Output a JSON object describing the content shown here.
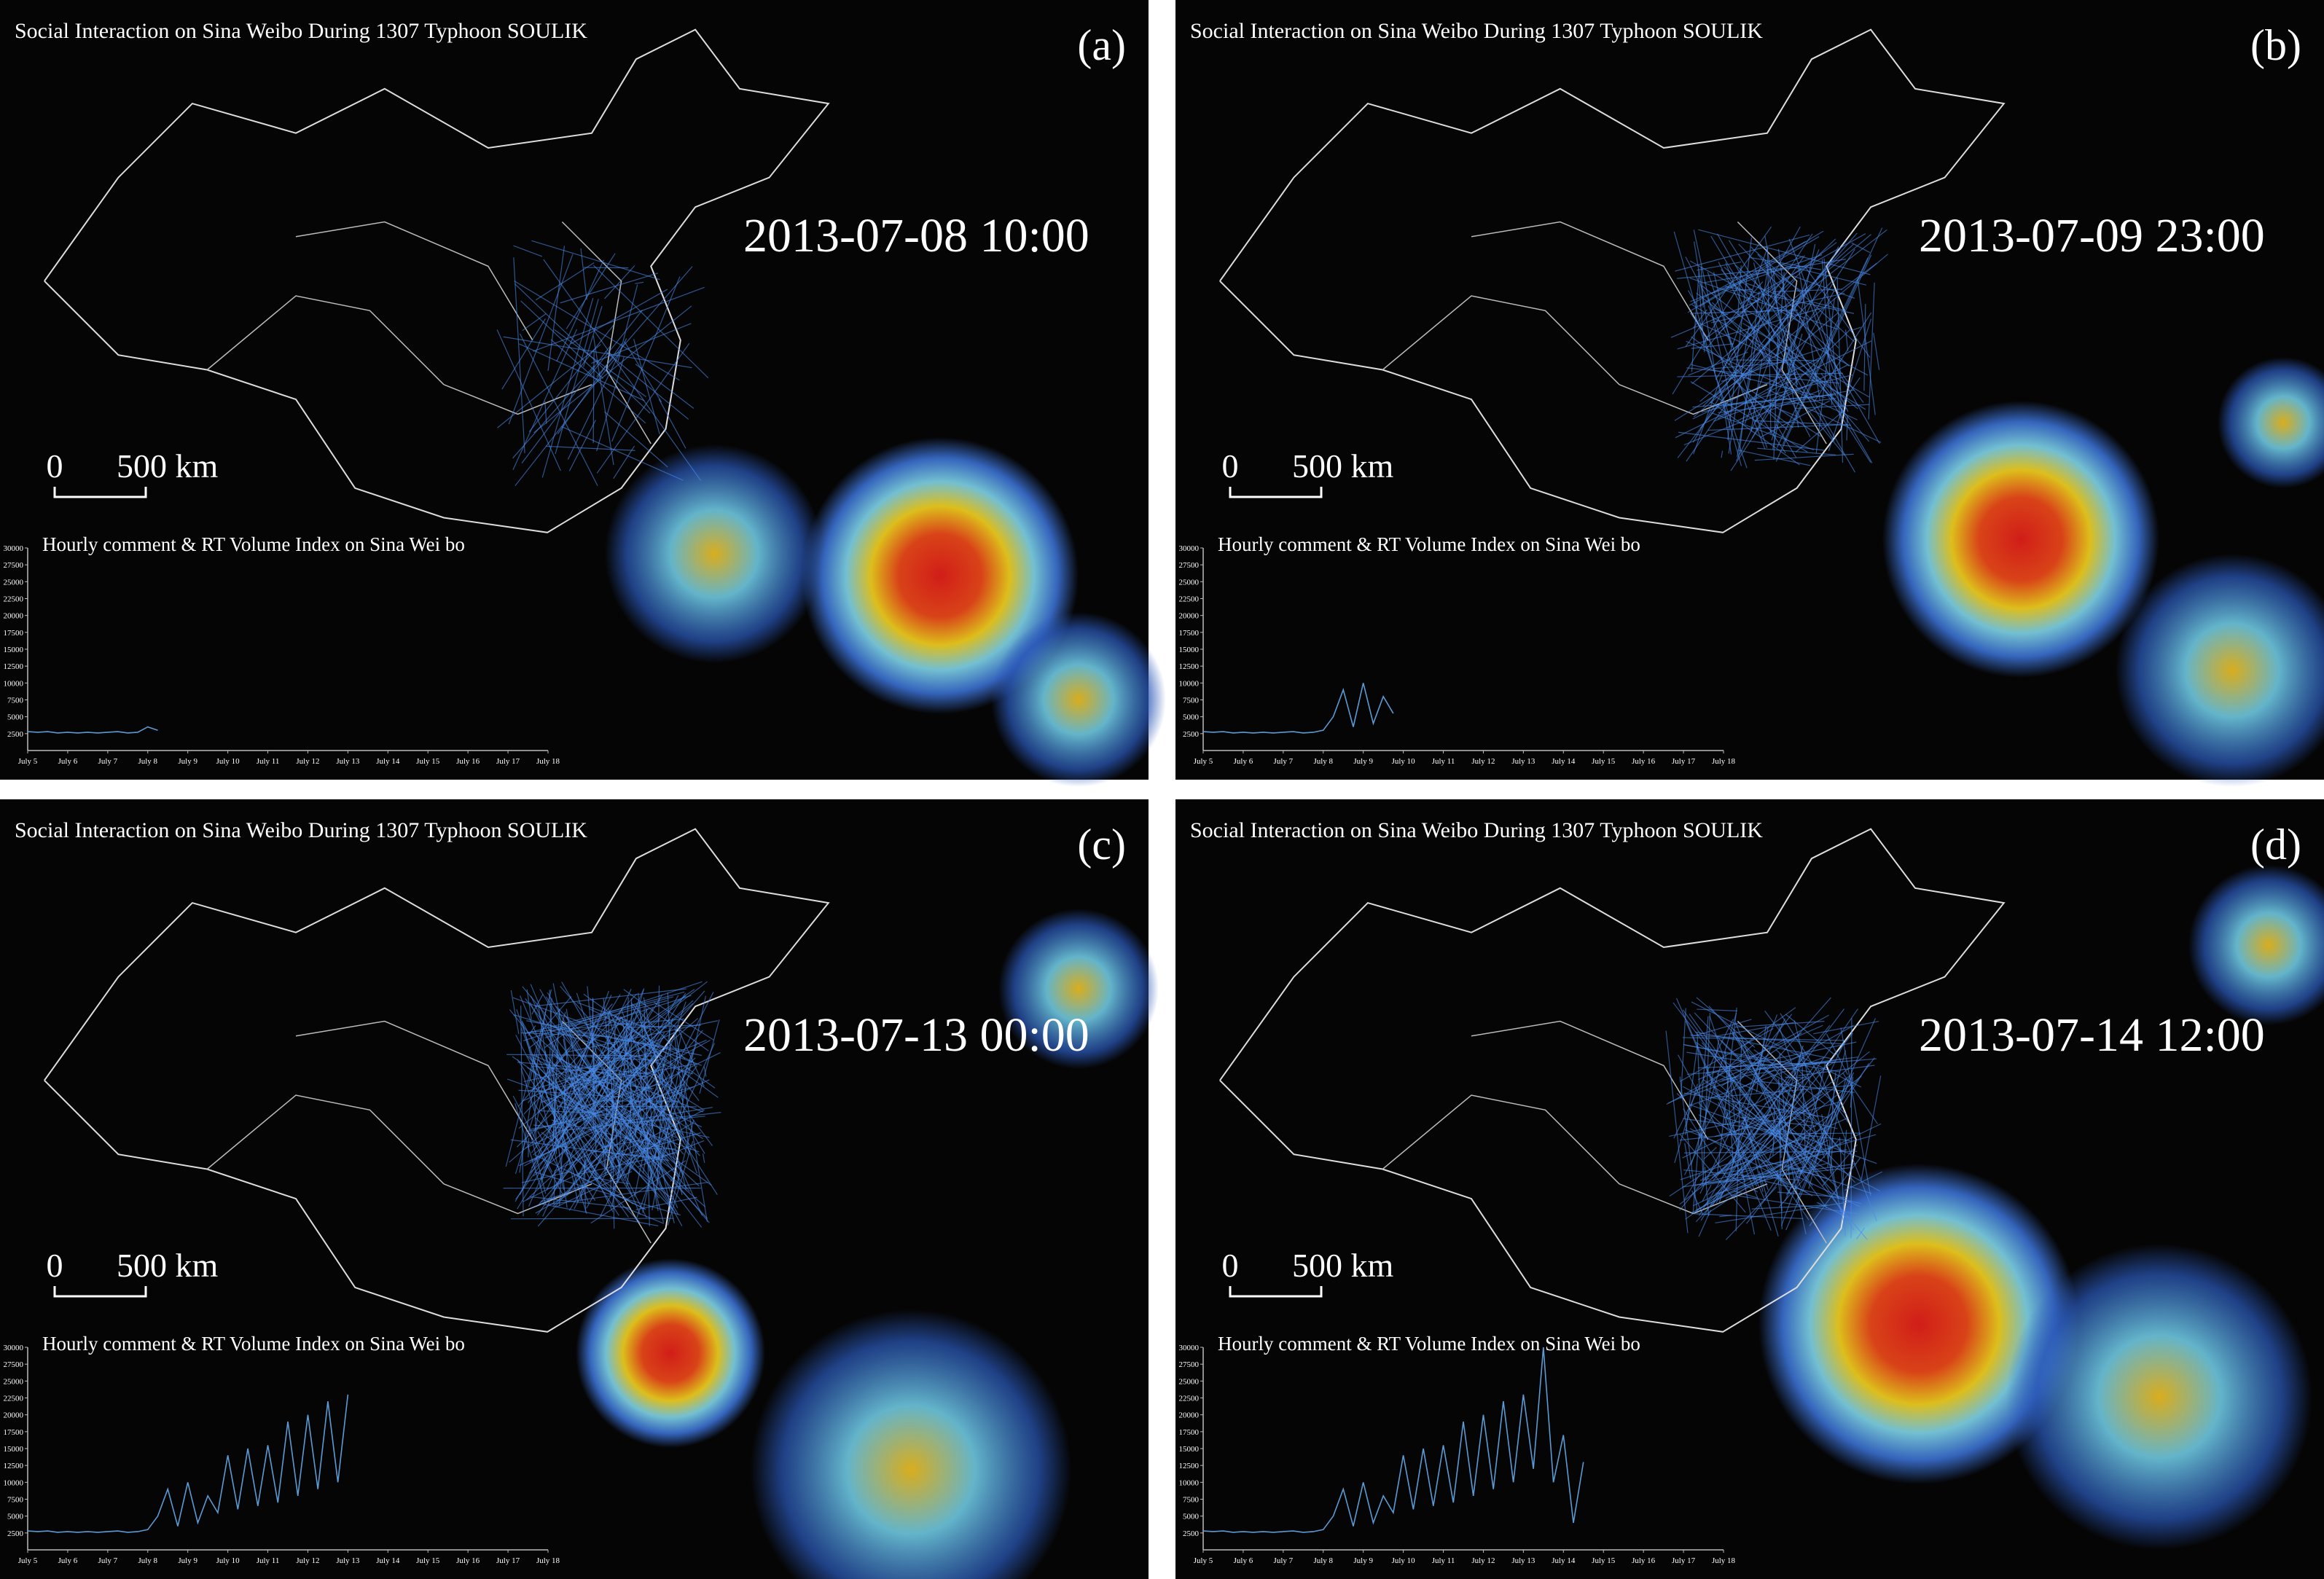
{
  "panels": [
    {
      "label": "(a)",
      "title": "Social Interaction on Sina Weibo During 1307 Typhoon SOULIK",
      "timestamp": "2013-07-08  10:00",
      "scale_start": "0",
      "scale_end": "500 km"
    },
    {
      "label": "(b)",
      "title": "Social Interaction on Sina Weibo During 1307 Typhoon SOULIK",
      "timestamp": "2013-07-09  23:00",
      "scale_start": "0",
      "scale_end": "500 km"
    },
    {
      "label": "(c)",
      "title": "Social Interaction on Sina Weibo During 1307 Typhoon SOULIK",
      "timestamp": "2013-07-13  00:00",
      "scale_start": "0",
      "scale_end": "500 km"
    },
    {
      "label": "(d)",
      "title": "Social Interaction on Sina Weibo During 1307 Typhoon SOULIK",
      "timestamp": "2013-07-14  12:00",
      "scale_start": "0",
      "scale_end": "500 km"
    }
  ],
  "chart_data": [
    {
      "type": "line",
      "title": "Hourly comment & RT Volume Index on Sina Wei bo",
      "x": [
        5,
        5.25,
        5.5,
        5.75,
        6,
        6.25,
        6.5,
        6.75,
        7,
        7.25,
        7.5,
        7.75,
        8,
        8.25
      ],
      "series": [
        {
          "color": "#5b9bd5",
          "values": [
            2800,
            2700,
            2800,
            2600,
            2700,
            2600,
            2700,
            2600,
            2700,
            2800,
            2600,
            2700,
            3500,
            3000
          ]
        }
      ],
      "xlim": [
        5,
        18
      ],
      "ylim": [
        0,
        30000
      ],
      "xticks": [
        {
          "value": 5,
          "label": "July 5"
        },
        {
          "value": 6,
          "label": "July 6"
        },
        {
          "value": 7,
          "label": "July 7"
        },
        {
          "value": 8,
          "label": "July 8"
        },
        {
          "value": 9,
          "label": "July 9"
        },
        {
          "value": 10,
          "label": "July 10"
        },
        {
          "value": 11,
          "label": "July 11"
        },
        {
          "value": 12,
          "label": "July 12"
        },
        {
          "value": 13,
          "label": "July 13"
        },
        {
          "value": 14,
          "label": "July 14"
        },
        {
          "value": 15,
          "label": "July 15"
        },
        {
          "value": 16,
          "label": "July 16"
        },
        {
          "value": 17,
          "label": "July 17"
        },
        {
          "value": 18,
          "label": "July 18"
        }
      ],
      "yticks": [
        2500,
        5000,
        7500,
        10000,
        12500,
        15000,
        17500,
        20000,
        22500,
        25000,
        27500,
        30000
      ]
    },
    {
      "type": "line",
      "title": "Hourly comment & RT Volume Index on Sina Wei bo",
      "x": [
        5,
        5.25,
        5.5,
        5.75,
        6,
        6.25,
        6.5,
        6.75,
        7,
        7.25,
        7.5,
        7.75,
        8,
        8.25,
        8.5,
        8.75,
        9,
        9.25,
        9.5,
        9.75
      ],
      "series": [
        {
          "color": "#5b9bd5",
          "values": [
            2800,
            2700,
            2800,
            2600,
            2700,
            2600,
            2700,
            2600,
            2700,
            2800,
            2600,
            2700,
            3000,
            5000,
            9000,
            3500,
            10000,
            4000,
            8000,
            5500
          ]
        }
      ],
      "xlim": [
        5,
        18
      ],
      "ylim": [
        0,
        30000
      ],
      "xticks": [
        {
          "value": 5,
          "label": "July 5"
        },
        {
          "value": 6,
          "label": "July 6"
        },
        {
          "value": 7,
          "label": "July 7"
        },
        {
          "value": 8,
          "label": "July 8"
        },
        {
          "value": 9,
          "label": "July 9"
        },
        {
          "value": 10,
          "label": "July 10"
        },
        {
          "value": 11,
          "label": "July 11"
        },
        {
          "value": 12,
          "label": "July 12"
        },
        {
          "value": 13,
          "label": "July 13"
        },
        {
          "value": 14,
          "label": "July 14"
        },
        {
          "value": 15,
          "label": "July 15"
        },
        {
          "value": 16,
          "label": "July 16"
        },
        {
          "value": 17,
          "label": "July 17"
        },
        {
          "value": 18,
          "label": "July 18"
        }
      ],
      "yticks": [
        2500,
        5000,
        7500,
        10000,
        12500,
        15000,
        17500,
        20000,
        22500,
        25000,
        27500,
        30000
      ]
    },
    {
      "type": "line",
      "title": "Hourly comment & RT Volume Index on Sina Wei bo",
      "x": [
        5,
        5.25,
        5.5,
        5.75,
        6,
        6.25,
        6.5,
        6.75,
        7,
        7.25,
        7.5,
        7.75,
        8,
        8.25,
        8.5,
        8.75,
        9,
        9.25,
        9.5,
        9.75,
        10,
        10.25,
        10.5,
        10.75,
        11,
        11.25,
        11.5,
        11.75,
        12,
        12.25,
        12.5,
        12.75,
        13
      ],
      "series": [
        {
          "color": "#5b9bd5",
          "values": [
            2800,
            2700,
            2800,
            2600,
            2700,
            2600,
            2700,
            2600,
            2700,
            2800,
            2600,
            2700,
            3000,
            5000,
            9000,
            3500,
            10000,
            4000,
            8000,
            5500,
            14000,
            6000,
            15000,
            6500,
            15500,
            7000,
            19000,
            8000,
            20000,
            9000,
            22000,
            10000,
            23000
          ]
        }
      ],
      "xlim": [
        5,
        18
      ],
      "ylim": [
        0,
        30000
      ],
      "xticks": [
        {
          "value": 5,
          "label": "July 5"
        },
        {
          "value": 6,
          "label": "July 6"
        },
        {
          "value": 7,
          "label": "July 7"
        },
        {
          "value": 8,
          "label": "July 8"
        },
        {
          "value": 9,
          "label": "July 9"
        },
        {
          "value": 10,
          "label": "July 10"
        },
        {
          "value": 11,
          "label": "July 11"
        },
        {
          "value": 12,
          "label": "July 12"
        },
        {
          "value": 13,
          "label": "July 13"
        },
        {
          "value": 14,
          "label": "July 14"
        },
        {
          "value": 15,
          "label": "July 15"
        },
        {
          "value": 16,
          "label": "July 16"
        },
        {
          "value": 17,
          "label": "July 17"
        },
        {
          "value": 18,
          "label": "July 18"
        }
      ],
      "yticks": [
        2500,
        5000,
        7500,
        10000,
        12500,
        15000,
        17500,
        20000,
        22500,
        25000,
        27500,
        30000
      ]
    },
    {
      "type": "line",
      "title": "Hourly comment & RT Volume Index on Sina Wei bo",
      "x": [
        5,
        5.25,
        5.5,
        5.75,
        6,
        6.25,
        6.5,
        6.75,
        7,
        7.25,
        7.5,
        7.75,
        8,
        8.25,
        8.5,
        8.75,
        9,
        9.25,
        9.5,
        9.75,
        10,
        10.25,
        10.5,
        10.75,
        11,
        11.25,
        11.5,
        11.75,
        12,
        12.25,
        12.5,
        12.75,
        13,
        13.25,
        13.5,
        13.75,
        14,
        14.25,
        14.5
      ],
      "series": [
        {
          "color": "#5b9bd5",
          "values": [
            2800,
            2700,
            2800,
            2600,
            2700,
            2600,
            2700,
            2600,
            2700,
            2800,
            2600,
            2700,
            3000,
            5000,
            9000,
            3500,
            10000,
            4000,
            8000,
            5500,
            14000,
            6000,
            15000,
            6500,
            15500,
            7000,
            19000,
            8000,
            20000,
            9000,
            22000,
            10000,
            23000,
            12000,
            30000,
            10000,
            17000,
            4000,
            13000
          ]
        }
      ],
      "xlim": [
        5,
        18
      ],
      "ylim": [
        0,
        30000
      ],
      "xticks": [
        {
          "value": 5,
          "label": "July 5"
        },
        {
          "value": 6,
          "label": "July 6"
        },
        {
          "value": 7,
          "label": "July 7"
        },
        {
          "value": 8,
          "label": "July 8"
        },
        {
          "value": 9,
          "label": "July 9"
        },
        {
          "value": 10,
          "label": "July 10"
        },
        {
          "value": 11,
          "label": "July 11"
        },
        {
          "value": 12,
          "label": "July 12"
        },
        {
          "value": 13,
          "label": "July 13"
        },
        {
          "value": 14,
          "label": "July 14"
        },
        {
          "value": 15,
          "label": "July 15"
        },
        {
          "value": 16,
          "label": "July 16"
        },
        {
          "value": 17,
          "label": "July 17"
        },
        {
          "value": 18,
          "label": "July 18"
        }
      ],
      "yticks": [
        2500,
        5000,
        7500,
        10000,
        12500,
        15000,
        17500,
        20000,
        22500,
        25000,
        27500,
        30000
      ]
    }
  ]
}
